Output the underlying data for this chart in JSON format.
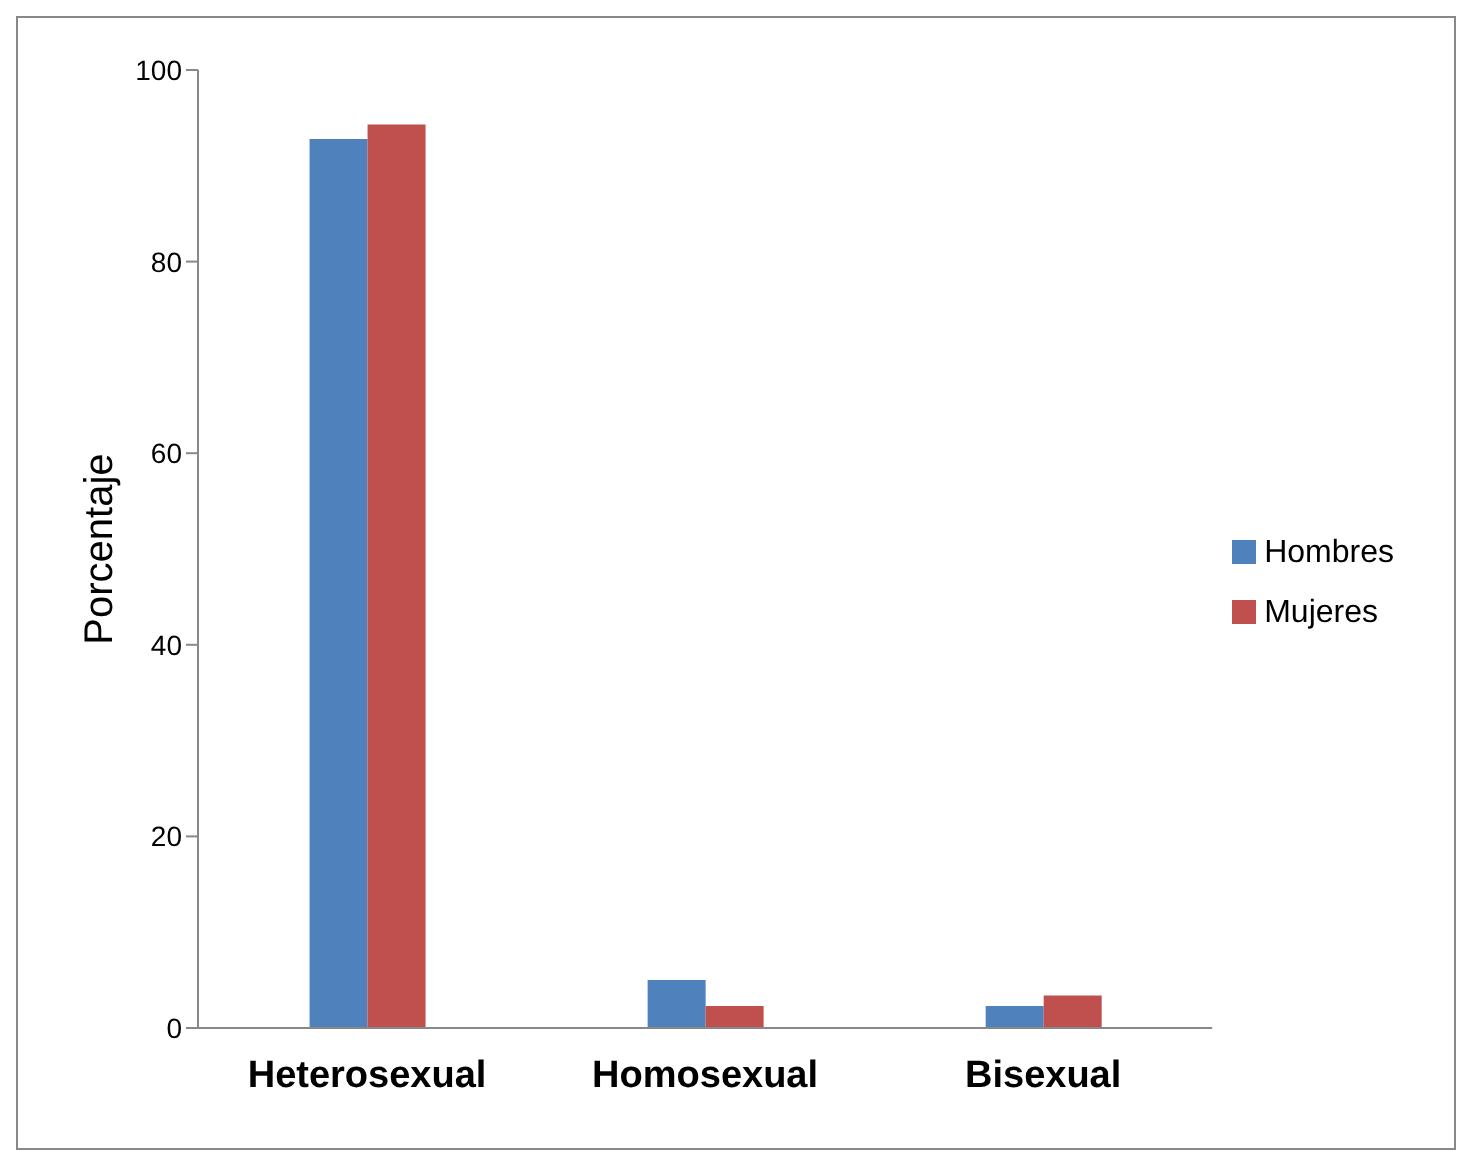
{
  "chart_data": {
    "type": "bar",
    "ylabel": "Porcentaje",
    "categories": [
      "Heterosexual",
      "Homosexual",
      "Bisexual"
    ],
    "series": [
      {
        "name": "Hombres",
        "color": "#4f81bd",
        "values": [
          92.8,
          5.0,
          2.3
        ]
      },
      {
        "name": "Mujeres",
        "color": "#c0504d",
        "values": [
          94.3,
          2.3,
          3.4
        ]
      }
    ],
    "ylim": [
      0,
      100
    ],
    "yticks": [
      0,
      20,
      40,
      60,
      80,
      100
    ],
    "grid": false,
    "legend": "right"
  }
}
